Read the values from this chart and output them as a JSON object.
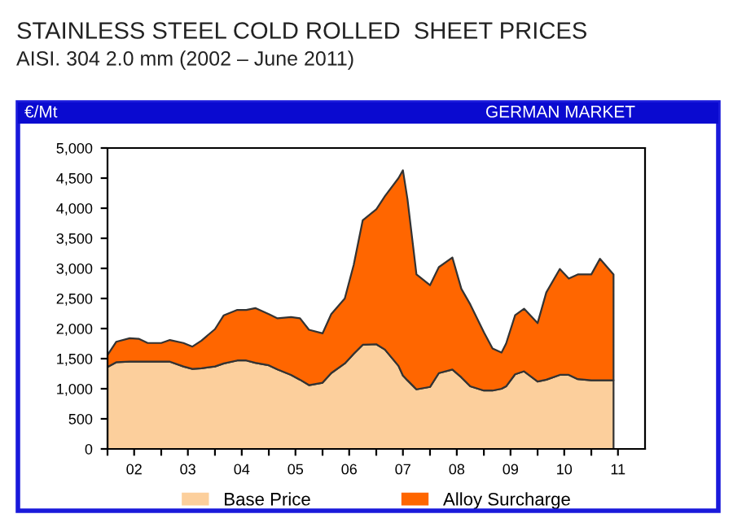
{
  "chart_data": {
    "type": "area",
    "stacked": true,
    "title": "STAINLESS STEEL COLD ROLLED  SHEET PRICES",
    "subtitle": "AISI. 304 2.0 mm (2002 – June 2011)",
    "annotations": [
      "€/Mt",
      "GERMAN MARKET"
    ],
    "x": [
      "2002-01",
      "2002-03",
      "2002-06",
      "2002-08",
      "2002-10",
      "2003-01",
      "2003-03",
      "2003-06",
      "2003-08",
      "2003-10",
      "2004-01",
      "2004-03",
      "2004-06",
      "2004-08",
      "2004-10",
      "2005-01",
      "2005-03",
      "2005-06",
      "2005-08",
      "2005-10",
      "2006-01",
      "2006-03",
      "2006-06",
      "2006-08",
      "2006-10",
      "2007-01",
      "2007-03",
      "2007-06",
      "2007-07",
      "2007-08",
      "2007-10",
      "2008-01",
      "2008-03",
      "2008-06",
      "2008-08",
      "2008-10",
      "2009-01",
      "2009-03",
      "2009-05",
      "2009-06",
      "2009-08",
      "2009-10",
      "2010-01",
      "2010-03",
      "2010-06",
      "2010-08",
      "2010-10",
      "2011-01",
      "2011-03",
      "2011-06"
    ],
    "series": [
      {
        "name": "Base Price",
        "color": "#fccf9c",
        "values": [
          1360,
          1440,
          1450,
          1450,
          1450,
          1450,
          1450,
          1370,
          1330,
          1340,
          1370,
          1420,
          1470,
          1470,
          1430,
          1390,
          1320,
          1230,
          1150,
          1060,
          1100,
          1260,
          1420,
          1580,
          1730,
          1740,
          1650,
          1380,
          1220,
          1140,
          990,
          1030,
          1260,
          1320,
          1190,
          1040,
          970,
          970,
          1000,
          1040,
          1240,
          1290,
          1120,
          1150,
          1230,
          1230,
          1160,
          1140,
          1140,
          1140
        ]
      },
      {
        "name": "Alloy Surcharge",
        "color": "#ff6600",
        "values": [
          200,
          340,
          390,
          380,
          310,
          310,
          360,
          390,
          370,
          460,
          620,
          800,
          840,
          840,
          910,
          850,
          850,
          960,
          1020,
          920,
          820,
          980,
          1080,
          1480,
          2070,
          2240,
          2550,
          3120,
          3410,
          3010,
          1910,
          1690,
          1760,
          1860,
          1470,
          1360,
          970,
          700,
          600,
          710,
          980,
          1040,
          970,
          1450,
          1760,
          1600,
          1740,
          1760,
          2020,
          1760
        ]
      }
    ],
    "xlim": [
      "2002-01",
      "2012-01"
    ],
    "xticks": [
      {
        "value": "2002-01",
        "label": null
      },
      {
        "value": "2002-07",
        "label": "02"
      },
      {
        "value": "2003-01",
        "label": null
      },
      {
        "value": "2003-07",
        "label": "03"
      },
      {
        "value": "2004-01",
        "label": null
      },
      {
        "value": "2004-07",
        "label": "04"
      },
      {
        "value": "2005-01",
        "label": null
      },
      {
        "value": "2005-07",
        "label": "05"
      },
      {
        "value": "2006-01",
        "label": null
      },
      {
        "value": "2006-07",
        "label": "06"
      },
      {
        "value": "2007-01",
        "label": null
      },
      {
        "value": "2007-07",
        "label": "07"
      },
      {
        "value": "2008-01",
        "label": null
      },
      {
        "value": "2008-07",
        "label": "08"
      },
      {
        "value": "2009-01",
        "label": null
      },
      {
        "value": "2009-07",
        "label": "09"
      },
      {
        "value": "2010-01",
        "label": null
      },
      {
        "value": "2010-07",
        "label": "10"
      },
      {
        "value": "2011-01",
        "label": null
      },
      {
        "value": "2011-07",
        "label": "11"
      }
    ],
    "ylim": [
      0,
      5000
    ],
    "yticks": [
      0,
      500,
      {
        "value": 1000,
        "label": "1,000"
      },
      {
        "value": 1500,
        "label": "1,500"
      },
      {
        "value": 2000,
        "label": "2,000"
      },
      {
        "value": 2500,
        "label": "2,500"
      },
      {
        "value": 3000,
        "label": "3,000"
      },
      {
        "value": 3500,
        "label": "3,500"
      },
      {
        "value": 4000,
        "label": "4,000"
      },
      {
        "value": 4500,
        "label": "4,500"
      },
      {
        "value": 5000,
        "label": "5,000"
      }
    ],
    "grid": false,
    "legend": "bottom"
  }
}
